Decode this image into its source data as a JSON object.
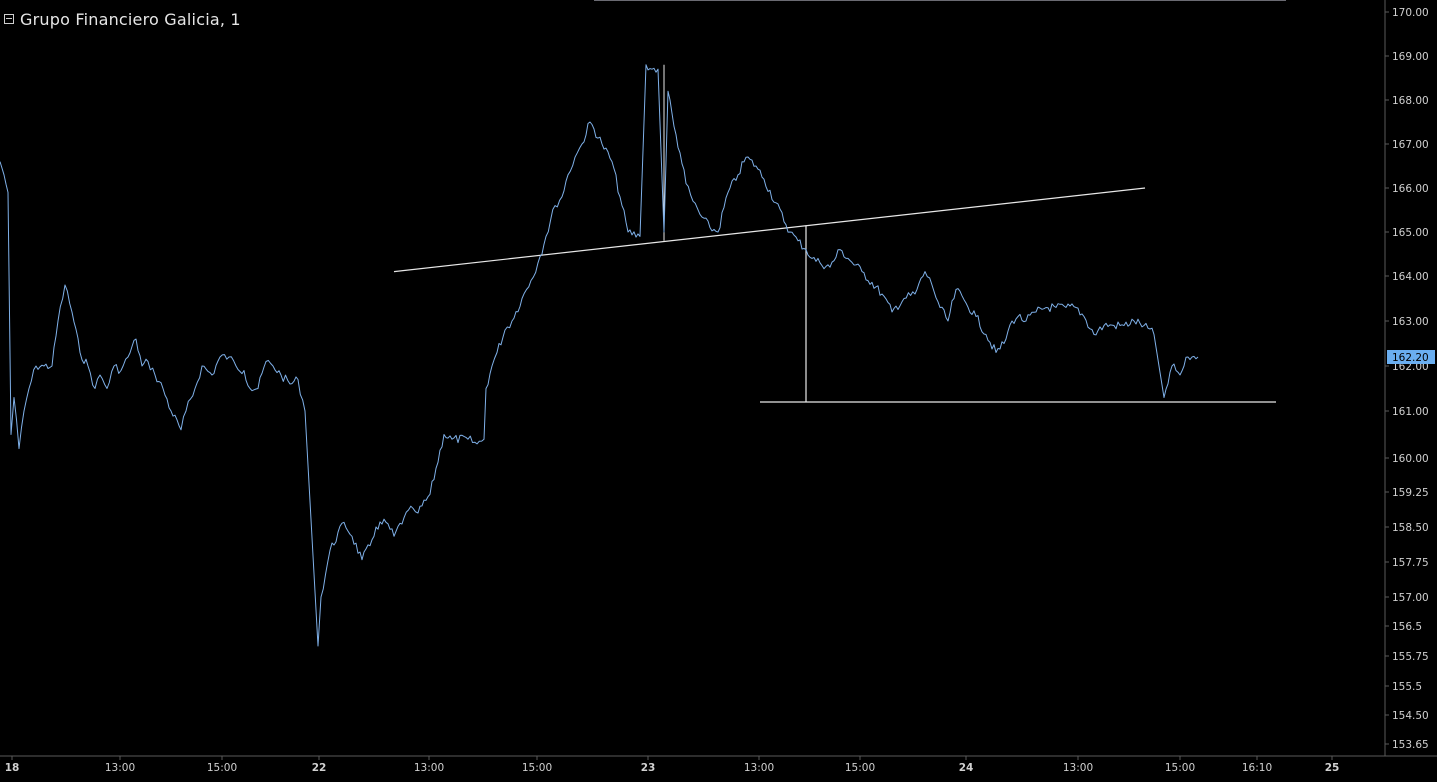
{
  "header": {
    "title": "Grupo Financiero Galicia, 1"
  },
  "colors": {
    "background": "#000000",
    "price_line": "#7fb0e8",
    "drawing_lines": "#e8e8e8",
    "axis_text": "#d0d0d0",
    "axis_line": "#5a5a5a",
    "last_price_badge": "#6aaef0"
  },
  "chart_data": {
    "type": "line",
    "title": "Grupo Financiero Galicia, 1",
    "x_ticks": [
      "18",
      "13:00",
      "15:00",
      "22",
      "13:00",
      "15:00",
      "23",
      "13:00",
      "15:00",
      "24",
      "13:00",
      "15:00",
      "16:10",
      "25"
    ],
    "y_ticks": [
      "170.00",
      "169.00",
      "168.00",
      "167.00",
      "166.00",
      "165.00",
      "164.00",
      "163.00",
      "162.00",
      "161.00",
      "160.00",
      "159.25",
      "158.50",
      "157.75",
      "157.00",
      "156.5",
      "155.75",
      "155.5",
      "154.50",
      "153.65"
    ],
    "ylim": [
      153.45,
      170.2
    ],
    "last_price": "162.20",
    "series": [
      {
        "points": [
          [
            0,
            166.6
          ],
          [
            1.5,
            166.3
          ],
          [
            2,
            165.9
          ],
          [
            3,
            160.5
          ],
          [
            4,
            161.3
          ],
          [
            5,
            160.2
          ],
          [
            6,
            161.0
          ],
          [
            7,
            161.5
          ],
          [
            8,
            162.0
          ],
          [
            9,
            162.0
          ],
          [
            10,
            162.0
          ],
          [
            11,
            163.0
          ],
          [
            12,
            163.8
          ],
          [
            13,
            163.2
          ],
          [
            14,
            162.3
          ],
          [
            15,
            162.0
          ],
          [
            16,
            161.5
          ],
          [
            17,
            161.8
          ],
          [
            18,
            161.5
          ],
          [
            19,
            162.0
          ],
          [
            20,
            161.9
          ],
          [
            21,
            162.2
          ],
          [
            22,
            162.6
          ],
          [
            23,
            162.0
          ],
          [
            24,
            162.1
          ],
          [
            25,
            161.8
          ],
          [
            26,
            161.5
          ],
          [
            27,
            161.0
          ],
          [
            28,
            160.6
          ],
          [
            29,
            161.0
          ],
          [
            30,
            161.5
          ],
          [
            31,
            162.0
          ],
          [
            32,
            161.8
          ],
          [
            33,
            162.2
          ],
          [
            34,
            162.2
          ],
          [
            35,
            162.0
          ],
          [
            36,
            161.9
          ],
          [
            37,
            161.5
          ],
          [
            38,
            161.5
          ],
          [
            39,
            162.1
          ],
          [
            40,
            162.0
          ],
          [
            41,
            161.8
          ],
          [
            42,
            161.6
          ],
          [
            43,
            161.7
          ],
          [
            44,
            161.0
          ],
          [
            45,
            156.0
          ],
          [
            46,
            157.0
          ],
          [
            47,
            158.0
          ],
          [
            48,
            158.6
          ],
          [
            49,
            158.3
          ],
          [
            50,
            157.8
          ],
          [
            51,
            158.1
          ],
          [
            52,
            158.5
          ],
          [
            53,
            158.6
          ],
          [
            54,
            158.3
          ],
          [
            55,
            158.7
          ],
          [
            56,
            158.9
          ],
          [
            57,
            158.8
          ],
          [
            58,
            159.2
          ],
          [
            59,
            160.5
          ],
          [
            60,
            160.4
          ],
          [
            61,
            160.4
          ],
          [
            62,
            160.3
          ],
          [
            63,
            160.4
          ],
          [
            64,
            161.5
          ],
          [
            65,
            162.0
          ],
          [
            66,
            162.3
          ],
          [
            67,
            162.8
          ],
          [
            68,
            163.0
          ],
          [
            69,
            163.5
          ],
          [
            70,
            163.9
          ],
          [
            71,
            164.3
          ],
          [
            72,
            164.9
          ],
          [
            73,
            165.6
          ],
          [
            74,
            165.8
          ],
          [
            75,
            166.3
          ],
          [
            76,
            166.7
          ],
          [
            77,
            167.0
          ],
          [
            78,
            167.5
          ],
          [
            79,
            167.0
          ],
          [
            80,
            166.6
          ],
          [
            81,
            165.8
          ],
          [
            82,
            165.0
          ],
          [
            83,
            164.9
          ],
          [
            84,
            168.8
          ],
          [
            85,
            168.7
          ],
          [
            86,
            168.7
          ],
          [
            87,
            165.0
          ],
          [
            88,
            168.2
          ],
          [
            89,
            167.4
          ],
          [
            90,
            166.8
          ],
          [
            91,
            166.1
          ],
          [
            92,
            165.7
          ],
          [
            93,
            165.4
          ],
          [
            94,
            165.1
          ],
          [
            95,
            165.0
          ],
          [
            96,
            165.9
          ],
          [
            97,
            166.3
          ],
          [
            98,
            166.7
          ],
          [
            99,
            166.5
          ],
          [
            100,
            166.2
          ],
          [
            101,
            165.0
          ],
          [
            102,
            164.8
          ],
          [
            103,
            164.6
          ],
          [
            104,
            164.4
          ],
          [
            105,
            164.3
          ],
          [
            106,
            164.2
          ],
          [
            107,
            164.6
          ],
          [
            108,
            164.4
          ],
          [
            109,
            164.1
          ],
          [
            110,
            163.6
          ],
          [
            111,
            163.2
          ],
          [
            112,
            163.5
          ],
          [
            113,
            163.6
          ],
          [
            114,
            164.1
          ],
          [
            115,
            163.8
          ],
          [
            116,
            163.3
          ],
          [
            117,
            163.0
          ],
          [
            118,
            163.7
          ],
          [
            119,
            163.4
          ],
          [
            120,
            163.1
          ],
          [
            121,
            162.7
          ],
          [
            122,
            162.3
          ],
          [
            123,
            162.5
          ],
          [
            124,
            163.0
          ],
          [
            125,
            163.1
          ],
          [
            126,
            163.0
          ],
          [
            127,
            163.2
          ],
          [
            128,
            163.3
          ],
          [
            129,
            163.3
          ],
          [
            130,
            163.3
          ],
          [
            131,
            163.3
          ],
          [
            132,
            163.1
          ],
          [
            133,
            162.7
          ],
          [
            134,
            162.9
          ],
          [
            135,
            162.9
          ],
          [
            136,
            162.9
          ],
          [
            137,
            163.0
          ],
          [
            138,
            162.9
          ],
          [
            139,
            162.7
          ],
          [
            140,
            161.3
          ],
          [
            141,
            162.0
          ],
          [
            142,
            161.8
          ],
          [
            143,
            162.0
          ],
          [
            144,
            162.2
          ],
          [
            145,
            162.2
          ],
          [
            146,
            162.2
          ]
        ]
      }
    ],
    "grid": false,
    "annotations": "three drawn white trend lines: rising neckline, vertical measuring line, horizontal target line"
  }
}
